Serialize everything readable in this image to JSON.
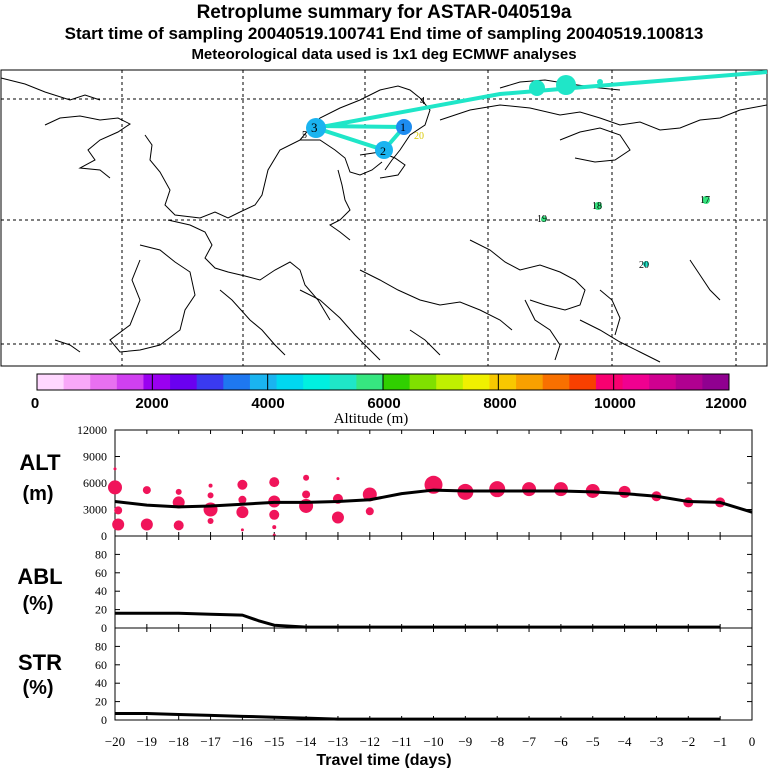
{
  "title": "Retroplume summary for ASTAR-040519a",
  "subtitle": "Start time of sampling 20040519.100741     End time of sampling 20040519.100813",
  "met_note": "Meteorological data used is 1x1 deg ECMWF analyses",
  "map": {
    "cluster_labels": [
      "4",
      "3",
      "5",
      "1",
      "20",
      "2",
      "19",
      "18",
      "17",
      "20"
    ],
    "colors": {
      "cyan": "#1fe6c8",
      "blue": "#1ab4f0",
      "dark_blue": "#1e8cf0",
      "green": "#36e680"
    }
  },
  "colorbar": {
    "title": "Altitude (m)",
    "ticks": [
      "0",
      "2000",
      "4000",
      "6000",
      "8000",
      "10000",
      "12000"
    ],
    "colors": [
      "#ffd8ff",
      "#f8a8f8",
      "#e870f0",
      "#d040f0",
      "#9a00f0",
      "#6a00f0",
      "#3a3af0",
      "#1e78f0",
      "#1ab4f0",
      "#00d8f0",
      "#00f0e0",
      "#1fe6c8",
      "#36e680",
      "#30d000",
      "#80e000",
      "#c0f000",
      "#f0f000",
      "#f8c800",
      "#f8a000",
      "#f87000",
      "#f84000",
      "#f80070",
      "#f00090",
      "#d00090",
      "#b00090",
      "#900090"
    ]
  },
  "chart_data": [
    {
      "type": "line",
      "panel": "ALT",
      "ylabel": "ALT (m)",
      "ylim": [
        0,
        12000
      ],
      "yticks": [
        0,
        3000,
        6000,
        9000,
        12000
      ],
      "x": [
        -20,
        -19,
        -18,
        -17,
        -16,
        -15,
        -14,
        -13,
        -12,
        -11,
        -10,
        -9,
        -8,
        -7,
        -6,
        -5,
        -4,
        -3,
        -2,
        -1,
        0
      ],
      "values": [
        3900,
        3500,
        3300,
        3400,
        3600,
        3800,
        3800,
        3900,
        4100,
        4800,
        5200,
        5100,
        5100,
        5100,
        5100,
        5000,
        4800,
        4500,
        3900,
        3800,
        2700
      ],
      "bubbles": [
        {
          "x": -20.0,
          "y": 7600,
          "r": 1.5
        },
        {
          "x": -20.0,
          "y": 5500,
          "r": 7
        },
        {
          "x": -19.9,
          "y": 2900,
          "r": 4
        },
        {
          "x": -19.9,
          "y": 1300,
          "r": 6
        },
        {
          "x": -19.0,
          "y": 5200,
          "r": 4
        },
        {
          "x": -19.0,
          "y": 1300,
          "r": 6
        },
        {
          "x": -18.0,
          "y": 5000,
          "r": 3
        },
        {
          "x": -18.0,
          "y": 3800,
          "r": 6
        },
        {
          "x": -18.0,
          "y": 1200,
          "r": 5
        },
        {
          "x": -17.0,
          "y": 5700,
          "r": 2
        },
        {
          "x": -17.0,
          "y": 4600,
          "r": 3
        },
        {
          "x": -17.0,
          "y": 3000,
          "r": 7
        },
        {
          "x": -17.0,
          "y": 1700,
          "r": 3
        },
        {
          "x": -16.0,
          "y": 5800,
          "r": 5
        },
        {
          "x": -16.0,
          "y": 4100,
          "r": 4
        },
        {
          "x": -16.0,
          "y": 2700,
          "r": 6
        },
        {
          "x": -16.0,
          "y": 700,
          "r": 1.5
        },
        {
          "x": -15.0,
          "y": 6100,
          "r": 5
        },
        {
          "x": -15.0,
          "y": 3900,
          "r": 6
        },
        {
          "x": -15.0,
          "y": 2400,
          "r": 5
        },
        {
          "x": -15.0,
          "y": 1000,
          "r": 2
        },
        {
          "x": -15.0,
          "y": 100,
          "r": 1.5
        },
        {
          "x": -14.0,
          "y": 6600,
          "r": 3
        },
        {
          "x": -14.0,
          "y": 4700,
          "r": 4
        },
        {
          "x": -14.0,
          "y": 3400,
          "r": 7
        },
        {
          "x": -13.0,
          "y": 6500,
          "r": 1.5
        },
        {
          "x": -13.0,
          "y": 4200,
          "r": 5
        },
        {
          "x": -13.0,
          "y": 2100,
          "r": 6
        },
        {
          "x": -12.0,
          "y": 4700,
          "r": 7
        },
        {
          "x": -12.0,
          "y": 2800,
          "r": 4
        },
        {
          "x": -10.0,
          "y": 5800,
          "r": 9
        },
        {
          "x": -9.0,
          "y": 5000,
          "r": 8
        },
        {
          "x": -8.0,
          "y": 5300,
          "r": 8
        },
        {
          "x": -7.0,
          "y": 5300,
          "r": 7
        },
        {
          "x": -6.0,
          "y": 5300,
          "r": 7
        },
        {
          "x": -5.0,
          "y": 5100,
          "r": 7
        },
        {
          "x": -4.0,
          "y": 5000,
          "r": 6
        },
        {
          "x": -3.0,
          "y": 4500,
          "r": 5
        },
        {
          "x": -2.0,
          "y": 3800,
          "r": 5
        },
        {
          "x": -1.0,
          "y": 3800,
          "r": 5
        }
      ],
      "line_color": "#000000",
      "bubble_color": "#f0145a"
    },
    {
      "type": "line",
      "panel": "ABL",
      "ylabel": "ABL (%)",
      "ylim": [
        0,
        100
      ],
      "yticks": [
        0,
        20,
        40,
        60,
        80
      ],
      "x": [
        -20,
        -19,
        -18,
        -17,
        -16,
        -15.5,
        -15,
        -14,
        -13,
        -12,
        -11,
        -10,
        -9,
        -8,
        -7,
        -6,
        -5,
        -4,
        -3,
        -2,
        -1
      ],
      "values": [
        16,
        16,
        16,
        15,
        14,
        8,
        3,
        1,
        1,
        1,
        1,
        1,
        1,
        1,
        1,
        1,
        1,
        1,
        1,
        1,
        1
      ],
      "line_color": "#000000"
    },
    {
      "type": "line",
      "panel": "STR",
      "ylabel": "STR (%)",
      "ylim": [
        0,
        100
      ],
      "yticks": [
        0,
        20,
        40,
        60,
        80
      ],
      "x": [
        -20,
        -19,
        -18,
        -17,
        -16,
        -15,
        -14,
        -13,
        -12,
        -11,
        -10,
        -9,
        -8,
        -7,
        -6,
        -5,
        -4,
        -3,
        -2,
        -1
      ],
      "values": [
        7,
        7,
        6,
        5,
        4,
        3,
        2,
        1,
        1,
        1,
        1,
        1,
        1,
        1,
        1,
        1,
        1,
        1,
        1,
        1
      ],
      "line_color": "#000000"
    }
  ],
  "xaxis": {
    "label": "Travel time (days)",
    "ticks": [
      "−20",
      "−19",
      "−18",
      "−17",
      "−16",
      "−15",
      "−14",
      "−13",
      "−12",
      "−11",
      "−10",
      "−9",
      "−8",
      "−7",
      "−6",
      "−5",
      "−4",
      "−3",
      "−2",
      "−1",
      "0"
    ]
  }
}
